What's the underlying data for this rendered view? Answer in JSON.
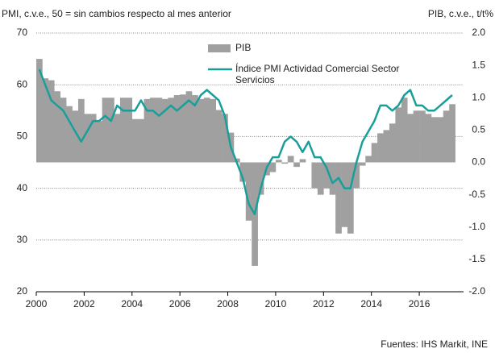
{
  "chart_data": {
    "type": "bar-line",
    "ylabel": "PMI, c.v.e., 50 = sin cambios respecto al mes anterior",
    "y2label": "PIB, c.v.e., t/t%",
    "source": "Fuentes: IHS Markit, INE",
    "x": [
      2000,
      2000.25,
      2000.5,
      2000.75,
      2001,
      2001.25,
      2001.5,
      2001.75,
      2002,
      2002.25,
      2002.5,
      2002.75,
      2003,
      2003.25,
      2003.5,
      2003.75,
      2004,
      2004.25,
      2004.5,
      2004.75,
      2005,
      2005.25,
      2005.5,
      2005.75,
      2006,
      2006.25,
      2006.5,
      2006.75,
      2007,
      2007.25,
      2007.5,
      2007.75,
      2008,
      2008.25,
      2008.5,
      2008.75,
      2009,
      2009.25,
      2009.5,
      2009.75,
      2010,
      2010.25,
      2010.5,
      2010.75,
      2011,
      2011.25,
      2011.5,
      2011.75,
      2012,
      2012.25,
      2012.5,
      2012.75,
      2013,
      2013.25,
      2013.5,
      2013.75,
      2014,
      2014.25,
      2014.5,
      2014.75,
      2015,
      2015.25,
      2015.5,
      2015.75,
      2016,
      2016.25,
      2016.5,
      2016.75,
      2017,
      2017.25
    ],
    "series": [
      {
        "name": "PIB",
        "kind": "bar",
        "axis": "y2",
        "color": "#a0a0a0",
        "values": [
          1.6,
          1.3,
          1.27,
          1.1,
          1.0,
          0.87,
          0.8,
          0.98,
          0.75,
          0.75,
          0.64,
          1.0,
          1.0,
          0.75,
          1.0,
          1.0,
          0.67,
          0.67,
          0.98,
          1.0,
          1.0,
          0.98,
          1.0,
          1.04,
          1.05,
          1.1,
          1.04,
          0.98,
          1.0,
          0.98,
          0.81,
          0.75,
          0.46,
          0.06,
          -0.3,
          -0.9,
          -1.6,
          -0.5,
          -0.2,
          -0.15,
          0.04,
          -0.02,
          0.1,
          -0.07,
          0.05,
          0.0,
          -0.4,
          -0.5,
          -0.4,
          -0.5,
          -1.1,
          -1.0,
          -1.1,
          -0.4,
          -0.05,
          0.1,
          0.3,
          0.45,
          0.5,
          0.6,
          0.85,
          1.0,
          0.75,
          0.8,
          0.8,
          0.75,
          0.7,
          0.7,
          0.8,
          0.9
        ]
      },
      {
        "name": "Índice PMI Actividad Comercial Sector Servicios",
        "kind": "line",
        "color": "#1a9e9a",
        "values": [
          63,
          60,
          57,
          56,
          55,
          53,
          51,
          49,
          51,
          53,
          53,
          54,
          53,
          56,
          55,
          55,
          55,
          57,
          55,
          55,
          54,
          55,
          56,
          55,
          56,
          57,
          56,
          58,
          59,
          58,
          57,
          54,
          48,
          45,
          42,
          37,
          35,
          40,
          44,
          46,
          46,
          49,
          50,
          49,
          47,
          49,
          46,
          46,
          44,
          41,
          42,
          40,
          40,
          45,
          49,
          51,
          53,
          56,
          56,
          55,
          56,
          58,
          59,
          56,
          56,
          55,
          55,
          56,
          57,
          58
        ]
      }
    ],
    "xlim": [
      2000,
      2017.85
    ],
    "xticks": [
      2000,
      2002,
      2004,
      2006,
      2008,
      2010,
      2012,
      2014,
      2016
    ],
    "ylim": [
      20,
      70
    ],
    "yticks": [
      20,
      30,
      40,
      50,
      60,
      70
    ],
    "y2lim": [
      -2,
      2
    ],
    "y2ticks": [
      {
        "value": -2,
        "label": "-2.0"
      },
      -1.5,
      {
        "value": -1,
        "label": "-1.0"
      },
      -0.5,
      {
        "value": 0,
        "label": "0.0"
      },
      0.5,
      {
        "value": 1,
        "label": "1.0"
      },
      1.5,
      {
        "value": 2,
        "label": "2.0"
      }
    ],
    "grid": true
  }
}
